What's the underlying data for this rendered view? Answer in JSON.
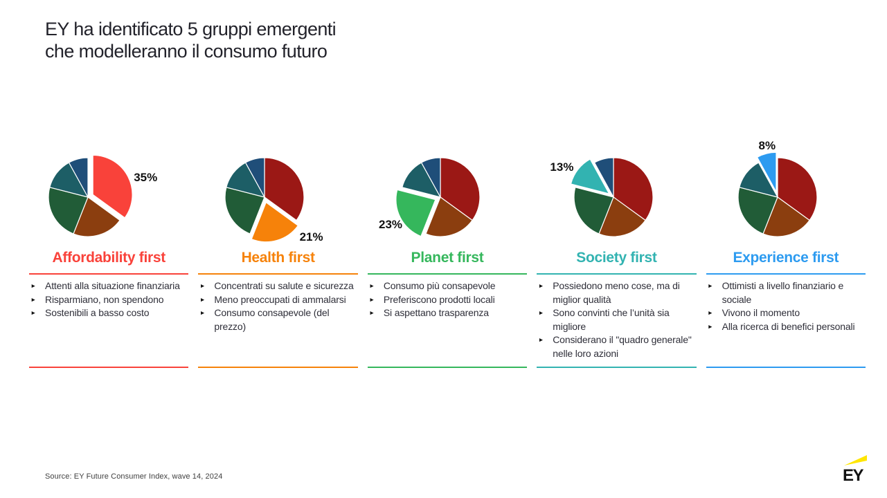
{
  "slide": {
    "title_line1": "EY ha identificato 5 gruppi emergenti",
    "title_line2": "che modelleranno il consumo futuro",
    "source": "Source: EY Future Consumer Index, wave 14, 2024",
    "logo_text": "EY"
  },
  "glyphs": {
    "bullet": "►"
  },
  "chart_data": {
    "type": "pie",
    "title": "EY ha identificato 5 gruppi emergenti che modelleranno il consumo futuro",
    "categories": [
      "Affordability first",
      "Health first",
      "Planet first",
      "Society first",
      "Experience first"
    ],
    "values": [
      35,
      21,
      23,
      13,
      8
    ],
    "unit": "%",
    "pie_count": 5,
    "highlight_per_pie": [
      0,
      1,
      2,
      3,
      4
    ],
    "data_labels": [
      "35%",
      "21%",
      "23%",
      "13%",
      "8%"
    ],
    "base_colors": [
      "#9B1815",
      "#8B3E0F",
      "#215C37",
      "#1D5E66",
      "#1F4E79"
    ],
    "highlight_colors": [
      "#F9423A",
      "#F6820A",
      "#35B75C",
      "#32B3B1",
      "#2D9BF0"
    ],
    "legend_position": "none",
    "start_angle": "12 o'clock, clockwise",
    "exploded_slice": "the highlighted slice of each pie"
  },
  "groups": [
    {
      "name": "Affordability first",
      "share": 35,
      "percent_label": "35%",
      "color": "#F9423A",
      "bullets": [
        "Attenti alla situazione finanziaria",
        "Risparmiano, non spendono",
        "Sostenibili a basso costo"
      ]
    },
    {
      "name": "Health first",
      "share": 21,
      "percent_label": "21%",
      "color": "#F6820A",
      "bullets": [
        "Concentrati su salute e sicurezza",
        "Meno preoccupati di ammalarsi",
        "Consumo consapevole (del prezzo)"
      ]
    },
    {
      "name": "Planet first",
      "share": 23,
      "percent_label": "23%",
      "color": "#35B75C",
      "bullets": [
        "Consumo più consapevole",
        "Preferiscono prodotti locali",
        "Si aspettano trasparenza"
      ]
    },
    {
      "name": "Society first",
      "share": 13,
      "percent_label": "13%",
      "color": "#32B3B1",
      "bullets": [
        "Possiedono meno cose, ma di miglior qualità",
        "Sono convinti che l’unità sia migliore",
        "Considerano il \"quadro generale\" nelle loro azioni"
      ]
    },
    {
      "name": "Experience first",
      "share": 8,
      "percent_label": "8%",
      "color": "#2D9BF0",
      "bullets": [
        "Ottimisti a livello finanziario e sociale",
        "Vivono il momento",
        "Alla ricerca di benefici personali"
      ]
    }
  ]
}
